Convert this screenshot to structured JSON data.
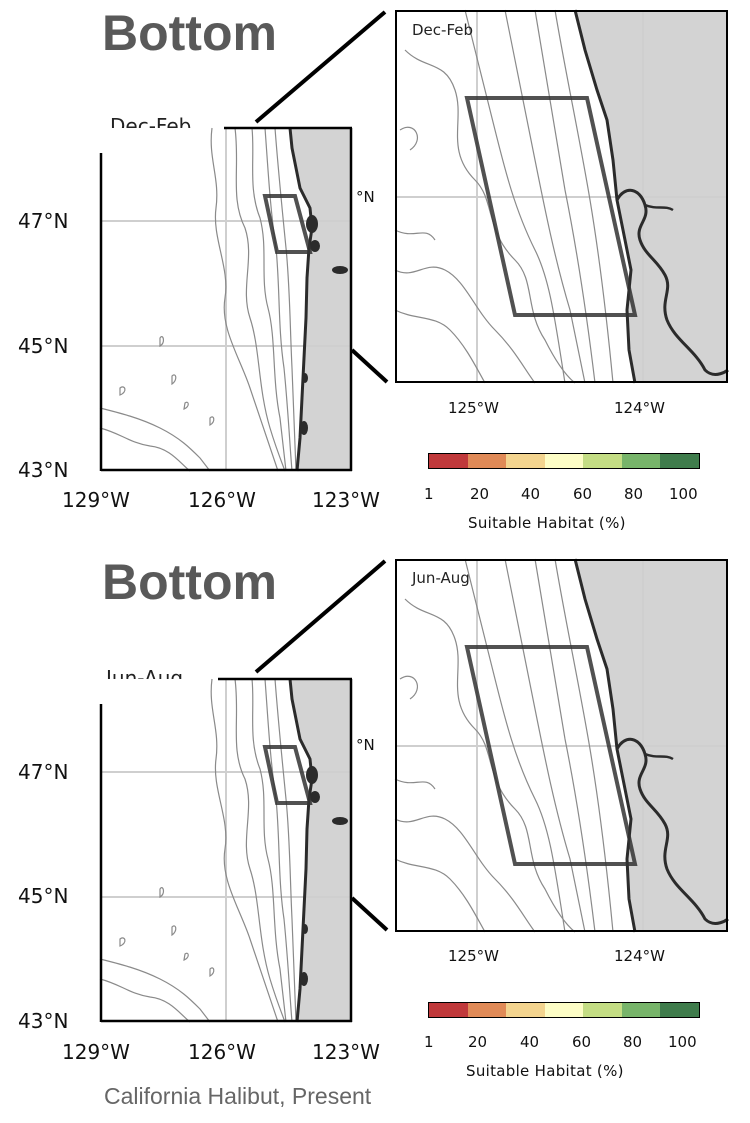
{
  "panels": [
    {
      "depth_title": "Bottom",
      "season": "Dec-Feb",
      "inset_season": "Dec-Feb",
      "lat_ticks": [
        "47°N",
        "45°N",
        "43°N"
      ],
      "lon_ticks": [
        "129°W",
        "126°W",
        "123°W"
      ],
      "inset_lat_tick": "°N",
      "inset_lon_ticks": [
        "125°W",
        "124°W"
      ]
    },
    {
      "depth_title": "Bottom",
      "season": "Jun-Aug",
      "inset_season": "Jun-Aug",
      "lat_ticks": [
        "47°N",
        "45°N",
        "43°N"
      ],
      "lon_ticks": [
        "129°W",
        "126°W",
        "123°W"
      ],
      "inset_lat_tick": "°N",
      "inset_lon_ticks": [
        "125°W",
        "124°W"
      ]
    }
  ],
  "colorbar": {
    "label": "Suitable Habitat (%)",
    "ticks": [
      "1",
      "20",
      "40",
      "60",
      "80",
      "100"
    ],
    "colors": [
      "#c0393b",
      "#e08a57",
      "#f3d48f",
      "#fdfdc6",
      "#c4dd84",
      "#77b46a",
      "#3f7c4c"
    ]
  },
  "caption": "California Halibut, Present",
  "colors": {
    "land": "#d3d3d3",
    "coast": "#2b2b2b",
    "contour": "#8a8a8a",
    "grid": "#cfcfcf"
  }
}
